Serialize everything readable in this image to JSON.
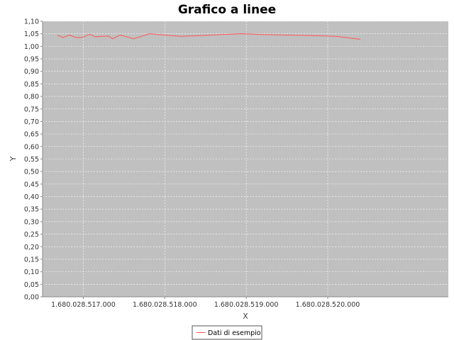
{
  "chart_data": {
    "type": "line",
    "title": "Grafico a linee",
    "xlabel": "X",
    "ylabel": "Y",
    "xlim": [
      1680028516500,
      1680028521480
    ],
    "ylim": [
      0,
      1.1
    ],
    "x_ticks": [
      1680028517000,
      1680028518000,
      1680028519000,
      1680028520000
    ],
    "x_tick_labels": [
      "1.680.028.517.000",
      "1.680.028.518.000",
      "1.680.028.519.000",
      "1.680.028.520.000"
    ],
    "y_ticks": [
      0,
      0.05,
      0.1,
      0.15,
      0.2,
      0.25,
      0.3,
      0.35,
      0.4,
      0.45,
      0.5,
      0.55,
      0.6,
      0.65,
      0.7,
      0.75,
      0.8,
      0.85,
      0.9,
      0.95,
      1.0,
      1.05,
      1.1
    ],
    "y_tick_labels": [
      "0,00",
      "0,05",
      "0,10",
      "0,15",
      "0,20",
      "0,25",
      "0,30",
      "0,35",
      "0,40",
      "0,45",
      "0,50",
      "0,55",
      "0,60",
      "0,65",
      "0,70",
      "0,75",
      "0,80",
      "0,85",
      "0,90",
      "0,95",
      "1,00",
      "1,05",
      "1,10"
    ],
    "grid": true,
    "legend": "bottom-center",
    "series": [
      {
        "name": "Dati di esempio",
        "color": "#ff5555",
        "x": [
          1680028516680,
          1680028516750,
          1680028516830,
          1680028516910,
          1680028516990,
          1680028517080,
          1680028517150,
          1680028517230,
          1680028517310,
          1680028517360,
          1680028517450,
          1680028517620,
          1680028517810,
          1680028518000,
          1680028518200,
          1680028518450,
          1680028518700,
          1680028518950,
          1680028519200,
          1680028519500,
          1680028519800,
          1680028520100,
          1680028520400
        ],
        "y": [
          1.045,
          1.035,
          1.045,
          1.035,
          1.036,
          1.048,
          1.038,
          1.04,
          1.041,
          1.03,
          1.045,
          1.03,
          1.05,
          1.045,
          1.04,
          1.043,
          1.047,
          1.05,
          1.047,
          1.045,
          1.043,
          1.04,
          1.028
        ]
      }
    ]
  }
}
